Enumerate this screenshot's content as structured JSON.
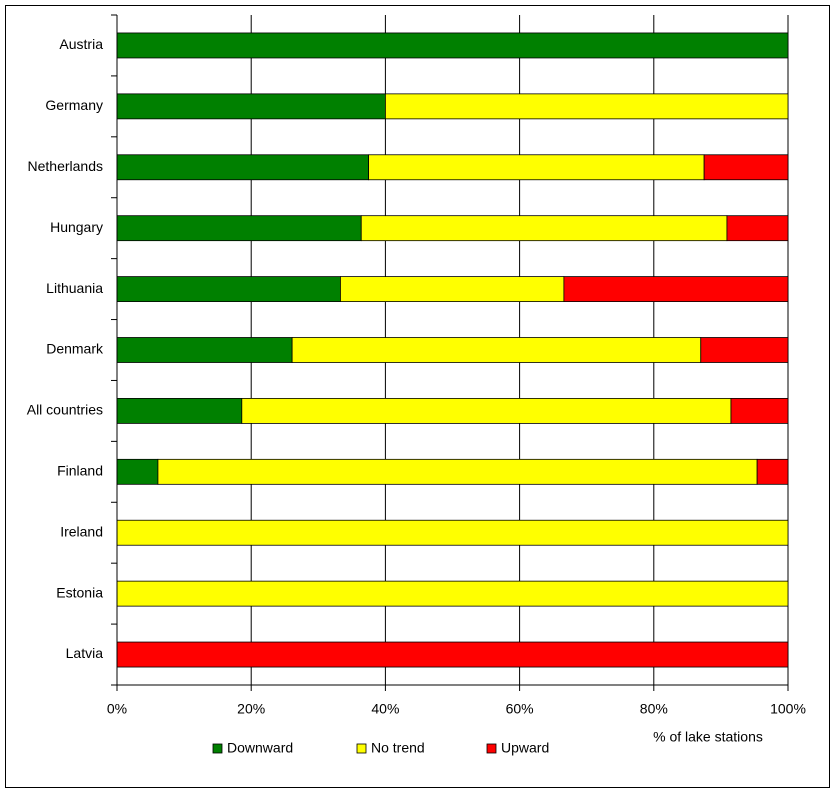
{
  "chart_data": {
    "type": "stacked-bar-horizontal",
    "categories": [
      "Austria",
      "Germany",
      "Netherlands",
      "Hungary",
      "Lithuania",
      "Denmark",
      "All countries",
      "Finland",
      "Ireland",
      "Estonia",
      "Latvia"
    ],
    "series": [
      {
        "name": "Downward",
        "color": "#008000",
        "values": [
          100,
          40,
          37.5,
          36.4,
          33.3,
          26.1,
          18.6,
          6.1,
          0,
          0,
          0
        ]
      },
      {
        "name": "No trend",
        "color": "#ffff00",
        "values": [
          0,
          60,
          50,
          54.5,
          33.3,
          60.9,
          72.9,
          89.3,
          100,
          100,
          0
        ]
      },
      {
        "name": "Upward",
        "color": "#ff0000",
        "values": [
          0,
          0,
          12.5,
          9.1,
          33.4,
          13,
          8.5,
          4.6,
          0,
          0,
          100
        ]
      }
    ],
    "xlim": [
      0,
      100
    ],
    "xticks": [
      {
        "value": 0,
        "label": "0%"
      },
      {
        "value": 20,
        "label": "20%"
      },
      {
        "value": 40,
        "label": "40%"
      },
      {
        "value": 60,
        "label": "60%"
      },
      {
        "value": 80,
        "label": "80%"
      },
      {
        "value": 100,
        "label": "100%"
      }
    ],
    "x_label": "% of lake stations",
    "grid": true
  }
}
